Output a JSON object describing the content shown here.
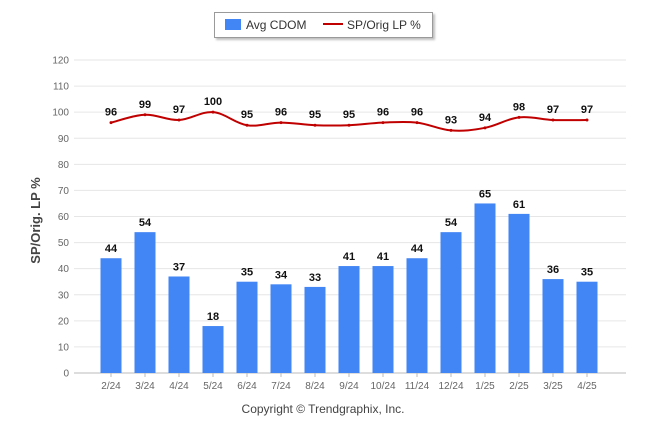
{
  "chart_data": {
    "type": "bar",
    "categories": [
      "2/24",
      "3/24",
      "4/24",
      "5/24",
      "6/24",
      "7/24",
      "8/24",
      "9/24",
      "10/24",
      "11/24",
      "12/24",
      "1/25",
      "2/25",
      "3/25",
      "4/25"
    ],
    "series": [
      {
        "name": "Avg CDOM",
        "type": "bar",
        "color": "#4285f4",
        "values": [
          44,
          54,
          37,
          18,
          35,
          34,
          33,
          41,
          41,
          44,
          54,
          65,
          61,
          36,
          35
        ]
      },
      {
        "name": "SP/Orig LP %",
        "type": "line",
        "color": "#c00000",
        "values": [
          96,
          99,
          97,
          100,
          95,
          96,
          95,
          95,
          96,
          96,
          93,
          94,
          98,
          97,
          97
        ]
      }
    ],
    "ylabel": "SP/Orig. LP %",
    "xlabel": "",
    "ylim": [
      0,
      120
    ],
    "yticks": [
      0,
      10,
      20,
      30,
      40,
      50,
      60,
      70,
      80,
      90,
      100,
      110,
      120
    ],
    "grid": true,
    "legend": "top-center"
  },
  "legend": {
    "bar_label": "Avg CDOM",
    "line_label": "SP/Orig LP %"
  },
  "footer": {
    "copyright": "Copyright © Trendgraphix, Inc."
  }
}
